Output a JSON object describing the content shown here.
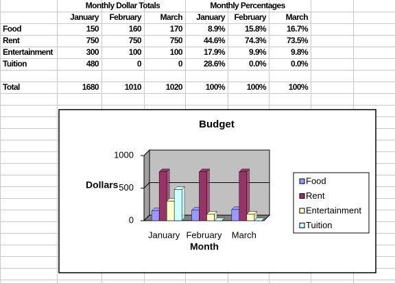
{
  "table": {
    "groups": [
      "Monthly Dollar Totals",
      "Monthly Percentages"
    ],
    "columns": [
      "January",
      "February",
      "March",
      "January",
      "February",
      "March"
    ],
    "rows": [
      [
        "Food",
        "150",
        "160",
        "170",
        "8.9%",
        "15.8%",
        "16.7%"
      ],
      [
        "Rent",
        "750",
        "750",
        "750",
        "44.6%",
        "74.3%",
        "73.5%"
      ],
      [
        "Entertainment",
        "300",
        "100",
        "100",
        "17.9%",
        "9.9%",
        "9.8%"
      ],
      [
        "Tuition",
        "480",
        "0",
        "0",
        "28.6%",
        "0.0%",
        "0.0%"
      ],
      [
        "Total",
        "1680",
        "1010",
        "1020",
        "100%",
        "100%",
        "100%"
      ]
    ]
  },
  "chart_data": {
    "type": "bar",
    "title": "Budget",
    "x_label": "Month",
    "y_label": "Dollars",
    "categories": [
      "January",
      "February",
      "March"
    ],
    "series": [
      {
        "name": "Food",
        "color": "#9999ff",
        "values": [
          150,
          160,
          170
        ]
      },
      {
        "name": "Rent",
        "color": "#993366",
        "values": [
          750,
          750,
          750
        ]
      },
      {
        "name": "Entertainment",
        "color": "#ffffcc",
        "values": [
          300,
          100,
          100
        ]
      },
      {
        "name": "Tuition",
        "color": "#ccffff",
        "values": [
          480,
          0,
          0
        ]
      }
    ],
    "ylim": [
      0,
      1000
    ],
    "yticks": [
      0,
      500,
      1000
    ],
    "grid": true,
    "legend": "right"
  }
}
